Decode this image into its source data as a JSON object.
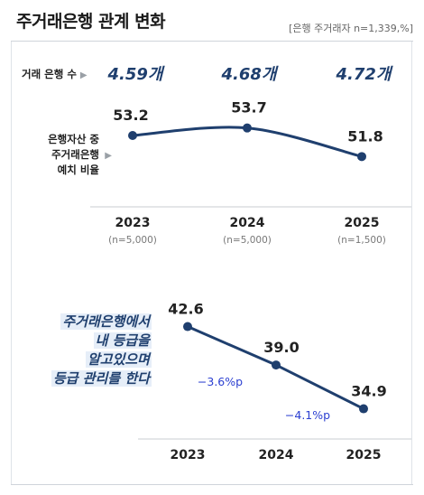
{
  "header": {
    "title": "주거래은행 관계 변화",
    "source": "[은행 주거래자 n=1,339,%]"
  },
  "colors": {
    "line": "#1f3f6e",
    "accent_text": "#1f3f6e",
    "diff_text": "#2b3fd1"
  },
  "bank_count": {
    "label": "거래 은행 수",
    "values": [
      "4.59개",
      "4.68개",
      "4.72개"
    ]
  },
  "deposit_label": [
    "은행자산 중",
    "주거래은행",
    "예치 비율"
  ],
  "callout": [
    "주거래은행에서",
    "내 등급을",
    "알고있으며",
    "등급 관리를 한다"
  ],
  "chart_data": [
    {
      "type": "line",
      "categories": [
        "2023",
        "2024",
        "2025"
      ],
      "category_notes": [
        "(n=5,000)",
        "(n=5,000)",
        "(n=1,500)"
      ],
      "series": [
        {
          "values": [
            53.2,
            53.7,
            51.8
          ]
        }
      ],
      "data_labels": [
        "53.2",
        "53.7",
        "51.8"
      ],
      "ylim": [
        49,
        55
      ]
    },
    {
      "type": "line",
      "categories": [
        "2023",
        "2024",
        "2025"
      ],
      "series": [
        {
          "values": [
            42.6,
            39.0,
            34.9
          ]
        }
      ],
      "data_labels": [
        "42.6",
        "39.0",
        "34.9"
      ],
      "annotations": [
        "−3.6%p",
        "−4.1%p"
      ],
      "ylim": [
        33,
        44
      ]
    }
  ]
}
